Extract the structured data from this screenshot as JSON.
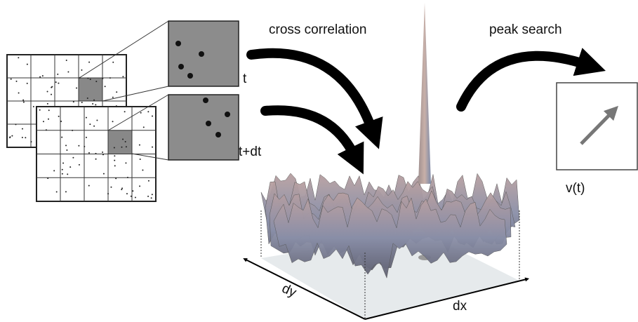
{
  "labels": {
    "cross_correlation": "cross correlation",
    "peak_search": "peak search",
    "t": "t",
    "t_dt": "t+dt",
    "v_t": "v(t)",
    "dy": "dy",
    "dx": "dx"
  }
}
